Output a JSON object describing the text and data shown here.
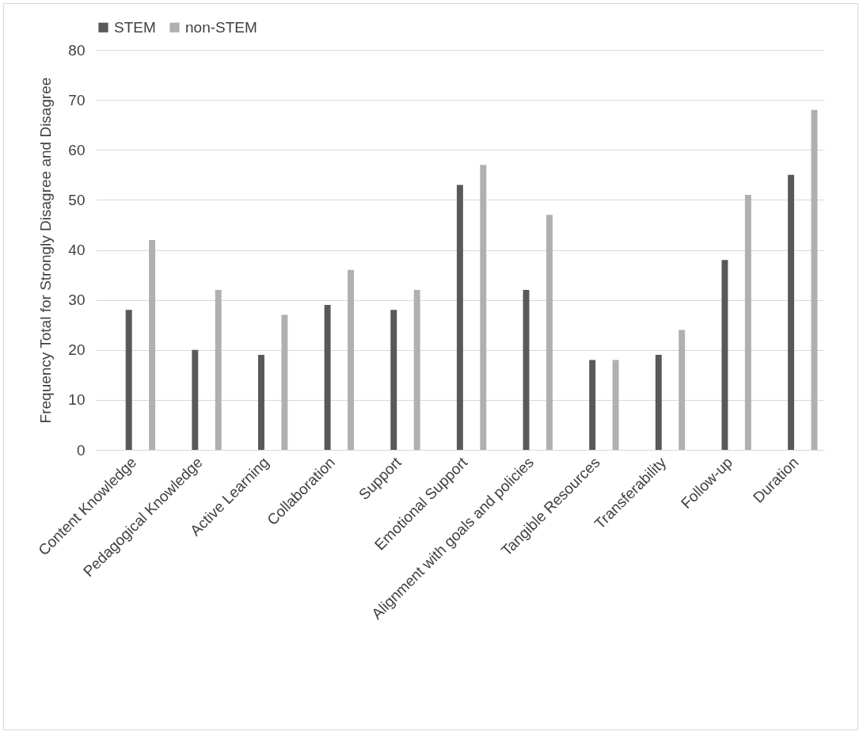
{
  "chart_data": {
    "type": "bar",
    "ylabel": "Frequency Total for Strongly Disagree and Disagree",
    "categories": [
      "Content Knowledge",
      "Pedagogical Knowledge",
      "Active Learning",
      "Collaboration",
      "Support",
      "Emotional Support",
      "Alignment with goals and policies",
      "Tangible Resources",
      "Transferability",
      "Follow-up",
      "Duration"
    ],
    "series": [
      {
        "name": "STEM",
        "color": "#595959",
        "values": [
          28,
          20,
          19,
          29,
          28,
          53,
          32,
          18,
          19,
          38,
          55
        ]
      },
      {
        "name": "non-STEM",
        "color": "#b0b0b0",
        "values": [
          42,
          32,
          27,
          36,
          32,
          57,
          47,
          18,
          24,
          51,
          68
        ]
      }
    ],
    "ylim": [
      0,
      80
    ],
    "yticks": [
      0,
      10,
      20,
      30,
      40,
      50,
      60,
      70,
      80
    ],
    "grid": "y",
    "legend": "top"
  }
}
